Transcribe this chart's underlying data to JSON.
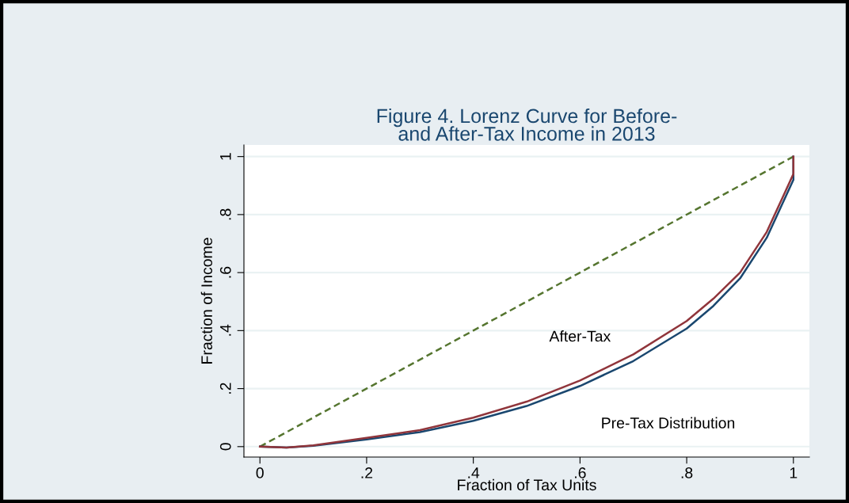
{
  "chart_data": {
    "type": "line",
    "title": "Figure 4. Lorenz Curve for Before-\nand After-Tax Income in 2013",
    "xlabel": "Fraction of Tax Units",
    "ylabel": "Fraction of Income",
    "series": [
      {
        "color": "#55752f",
        "line_style": "dashed",
        "x": [
          0,
          1
        ],
        "values": [
          0,
          1
        ]
      },
      {
        "color": "#1a476f",
        "line_style": "solid",
        "x": [
          0,
          0.05,
          0.1,
          0.2,
          0.3,
          0.4,
          0.5,
          0.6,
          0.7,
          0.8,
          0.85,
          0.9,
          0.95,
          0.98,
          1,
          1
        ],
        "values": [
          0,
          -0.003,
          0.003,
          0.025,
          0.05,
          0.089,
          0.14,
          0.209,
          0.295,
          0.407,
          0.485,
          0.58,
          0.72,
          0.84,
          0.92,
          1
        ]
      },
      {
        "color": "#90353b",
        "line_style": "solid",
        "x": [
          0,
          0.05,
          0.1,
          0.2,
          0.3,
          0.4,
          0.5,
          0.6,
          0.7,
          0.8,
          0.85,
          0.9,
          0.95,
          0.98,
          1,
          1
        ],
        "values": [
          0,
          -0.003,
          0.004,
          0.03,
          0.057,
          0.1,
          0.155,
          0.228,
          0.318,
          0.433,
          0.51,
          0.6,
          0.74,
          0.86,
          0.94,
          1
        ]
      }
    ],
    "annotations": [
      "After-Tax",
      "Pre-Tax Distribution"
    ],
    "xlim": [
      -0.03,
      1.03
    ],
    "ylim": [
      -0.036,
      1.04
    ],
    "xticks": [
      0,
      {
        "value": 0.2,
        "label": ".2"
      },
      {
        "value": 0.4,
        "label": ".4"
      },
      {
        "value": 0.6,
        "label": ".6"
      },
      {
        "value": 0.8,
        "label": ".8"
      },
      1
    ],
    "yticks": [
      0,
      {
        "value": 0.2,
        "label": ".2"
      },
      {
        "value": 0.4,
        "label": ".4"
      },
      {
        "value": 0.6,
        "label": ".6"
      },
      {
        "value": 0.8,
        "label": ".8"
      },
      1
    ],
    "grid": "y",
    "legend": false
  }
}
